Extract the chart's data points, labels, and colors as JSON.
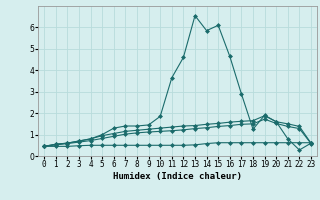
{
  "xlabel": "Humidex (Indice chaleur)",
  "background_color": "#d6eeee",
  "grid_color": "#b8dcdc",
  "line_color": "#1a6b6b",
  "x": [
    0,
    1,
    2,
    3,
    4,
    5,
    6,
    7,
    8,
    9,
    10,
    11,
    12,
    13,
    14,
    15,
    16,
    17,
    18,
    19,
    20,
    21,
    22,
    23
  ],
  "line1": [
    0.45,
    0.55,
    0.6,
    0.7,
    0.8,
    1.0,
    1.3,
    1.4,
    1.4,
    1.45,
    1.85,
    3.65,
    4.6,
    6.55,
    5.85,
    6.1,
    4.65,
    2.9,
    1.25,
    1.9,
    1.6,
    0.8,
    0.28,
    0.6
  ],
  "line2": [
    0.45,
    0.55,
    0.6,
    0.7,
    0.8,
    0.95,
    1.05,
    1.15,
    1.2,
    1.25,
    1.3,
    1.35,
    1.4,
    1.42,
    1.48,
    1.52,
    1.58,
    1.62,
    1.65,
    1.88,
    1.6,
    1.5,
    1.38,
    0.6
  ],
  "line3": [
    0.45,
    0.52,
    0.58,
    0.65,
    0.72,
    0.82,
    0.92,
    1.02,
    1.08,
    1.12,
    1.15,
    1.18,
    1.22,
    1.28,
    1.32,
    1.38,
    1.42,
    1.48,
    1.5,
    1.72,
    1.52,
    1.38,
    1.28,
    0.58
  ],
  "line4": [
    0.45,
    0.45,
    0.45,
    0.48,
    0.5,
    0.5,
    0.5,
    0.5,
    0.5,
    0.5,
    0.5,
    0.5,
    0.5,
    0.52,
    0.58,
    0.62,
    0.62,
    0.62,
    0.62,
    0.62,
    0.62,
    0.62,
    0.62,
    0.62
  ],
  "ylim": [
    0,
    7
  ],
  "xlim_min": -0.5,
  "xlim_max": 23.5,
  "yticks": [
    0,
    1,
    2,
    3,
    4,
    5,
    6
  ],
  "xticks": [
    0,
    1,
    2,
    3,
    4,
    5,
    6,
    7,
    8,
    9,
    10,
    11,
    12,
    13,
    14,
    15,
    16,
    17,
    18,
    19,
    20,
    21,
    22,
    23
  ],
  "marker": "D",
  "markersize": 2.0,
  "linewidth": 0.8,
  "xlabel_fontsize": 6.5,
  "tick_fontsize": 5.5
}
